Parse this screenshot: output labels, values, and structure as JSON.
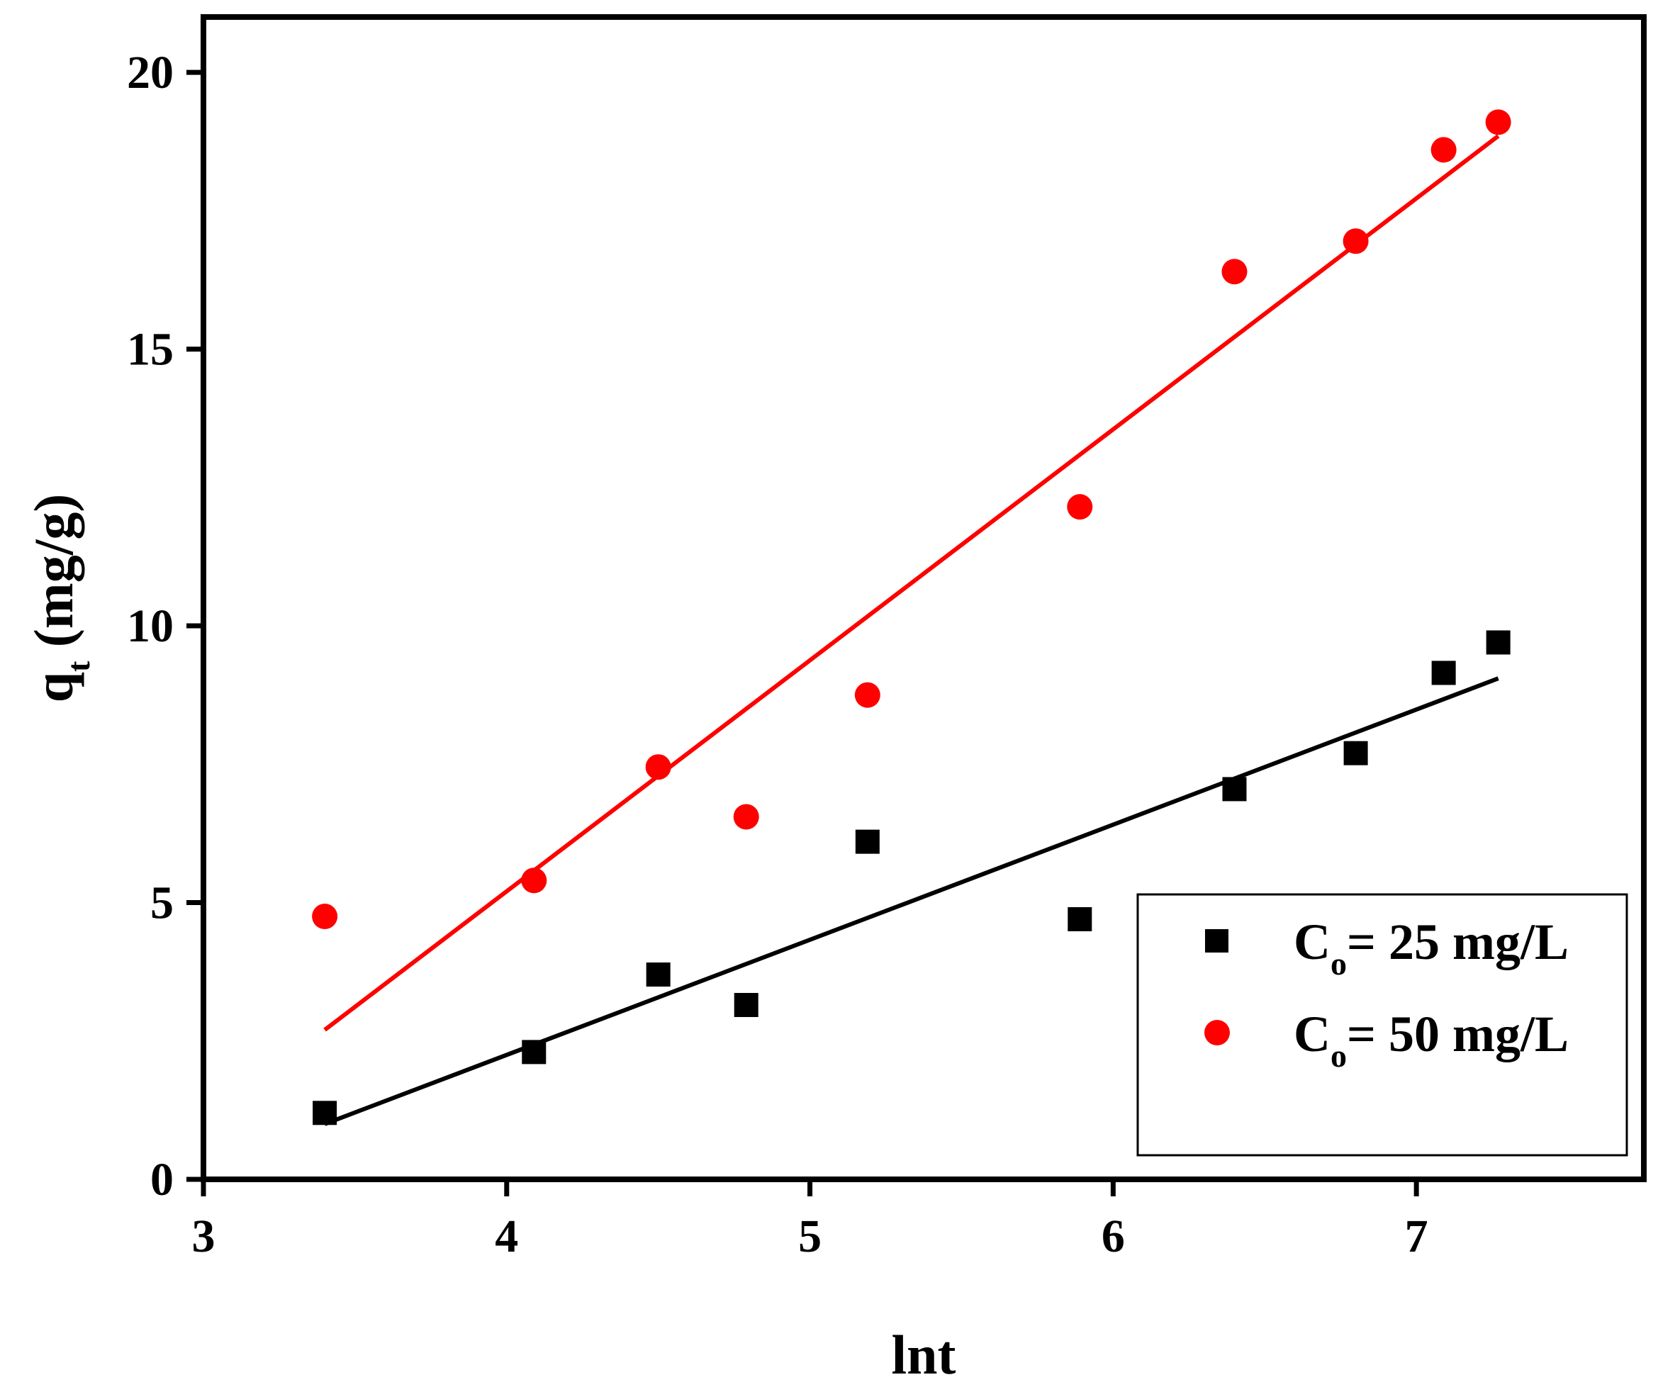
{
  "chart_data": {
    "type": "scatter",
    "title": "",
    "xlabel": "lnt",
    "ylabel": {
      "main": "q",
      "sub": "t",
      "rest": " (mg/g)"
    },
    "xlim": [
      3,
      7.75
    ],
    "ylim": [
      0,
      21
    ],
    "xticks": [
      3,
      4,
      5,
      6,
      7
    ],
    "yticks": [
      0,
      5,
      10,
      15,
      20
    ],
    "grid": false,
    "legend_position": "bottom-right",
    "series": [
      {
        "name": "Co= 25 mg/L",
        "legend": {
          "main": "C",
          "sub": "o",
          "rest": "= 25 mg/L"
        },
        "marker": "square",
        "color": "#000000",
        "x": [
          3.4,
          4.09,
          4.5,
          4.79,
          5.19,
          5.89,
          6.4,
          6.8,
          7.09,
          7.27
        ],
        "y": [
          1.2,
          2.3,
          3.7,
          3.15,
          6.1,
          4.7,
          7.05,
          7.7,
          9.15,
          9.7
        ],
        "fit": {
          "x": [
            3.4,
            7.27
          ],
          "y": [
            1.0,
            9.05
          ]
        }
      },
      {
        "name": "Co= 50 mg/L",
        "legend": {
          "main": "C",
          "sub": "o",
          "rest": "= 50 mg/L"
        },
        "marker": "circle",
        "color": "#ff0000",
        "x": [
          3.4,
          4.09,
          4.5,
          4.79,
          5.19,
          5.89,
          6.4,
          6.8,
          7.09,
          7.27
        ],
        "y": [
          4.75,
          5.4,
          7.45,
          6.55,
          8.75,
          12.15,
          16.4,
          16.95,
          18.6,
          19.1
        ],
        "fit": {
          "x": [
            3.4,
            7.27
          ],
          "y": [
            2.7,
            18.85
          ]
        }
      }
    ]
  }
}
